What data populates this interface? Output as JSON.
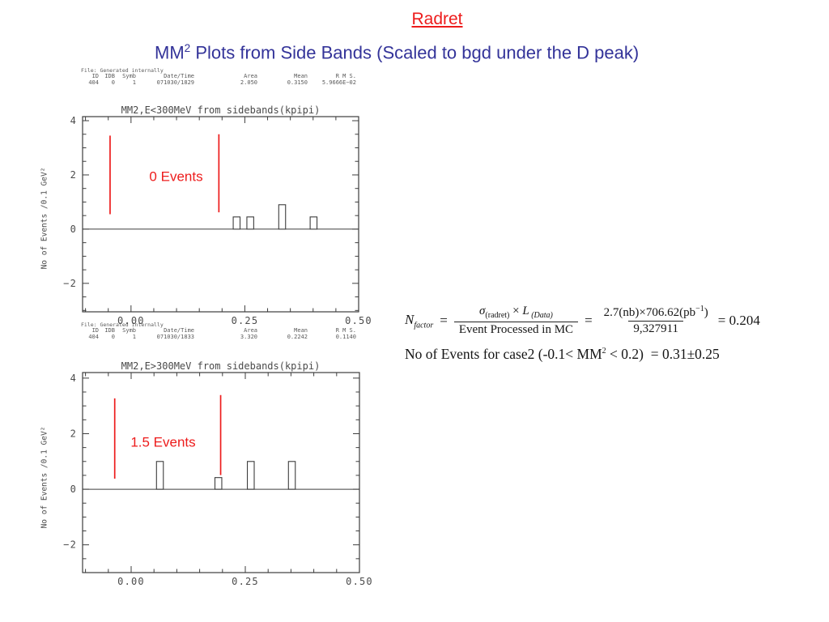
{
  "slide": {
    "title": "Radret",
    "subtitle": {
      "prefix": "MM",
      "sup": "2",
      "rest": " Plots from Side Bands (Scaled to bgd under the D peak)"
    }
  },
  "colors": {
    "accent_red": "#ed1c1c",
    "subtitle_blue": "#333399",
    "plot_line": "#3d3d3d",
    "tick_text": "#4a4a4a"
  },
  "chart_data": [
    {
      "type": "bar",
      "title": "MM2,E<300MeV from sidebands(kpipi)",
      "ylabel": "No of Events /0.1 GeV²",
      "xlabel": "",
      "xlim": [
        -0.1064,
        0.5
      ],
      "ylim": [
        -3.05,
        4.15
      ],
      "grid": false,
      "xticks": [
        {
          "v": 0,
          "label": "0.00"
        },
        {
          "v": 0.25,
          "label": "0.25"
        },
        {
          "v": 0.5,
          "label": "0.50"
        }
      ],
      "yticks": [
        {
          "v": -2,
          "label": "−2"
        },
        {
          "v": 0,
          "label": "0"
        },
        {
          "v": 2,
          "label": "2"
        },
        {
          "v": 4,
          "label": "4"
        }
      ],
      "x_minor_step": 0.05,
      "y_minor_step": 0.5,
      "bin_width": 0.015,
      "bars": [
        {
          "x": 0.232,
          "h": 0.45
        },
        {
          "x": 0.262,
          "h": 0.45
        },
        {
          "x": 0.332,
          "h": 0.9
        },
        {
          "x": 0.401,
          "h": 0.45
        }
      ],
      "cut_lines": [
        {
          "x": -0.046,
          "y0": 0.55,
          "y1": 3.45
        },
        {
          "x": 0.193,
          "y0": 0.62,
          "y1": 3.5
        }
      ],
      "annotation": {
        "text": "0 Events",
        "x": 0.099,
        "y": 1.95
      },
      "stats": {
        "file_line": "File: Generated internally",
        "headers": [
          "ID",
          "IDB",
          "Symb",
          "Date/Time",
          "Area",
          "Mean",
          "R M S."
        ],
        "values": [
          "404",
          "0",
          "1",
          "071030/1829",
          "2.050",
          "0.3150",
          "5.9666E−02"
        ]
      }
    },
    {
      "type": "bar",
      "title": "MM2,E>300MeV from sidebands(kpipi)",
      "ylabel": "No of Events /0.1 GeV²",
      "xlabel": "",
      "xlim": [
        -0.1064,
        0.5
      ],
      "ylim": [
        -3.0,
        4.2
      ],
      "grid": false,
      "xticks": [
        {
          "v": 0,
          "label": "0.00"
        },
        {
          "v": 0.25,
          "label": "0.25"
        },
        {
          "v": 0.5,
          "label": "0.50"
        }
      ],
      "yticks": [
        {
          "v": -2,
          "label": "−2"
        },
        {
          "v": 0,
          "label": "0"
        },
        {
          "v": 2,
          "label": "2"
        },
        {
          "v": 4,
          "label": "4"
        }
      ],
      "x_minor_step": 0.05,
      "y_minor_step": 0.5,
      "bin_width": 0.015,
      "bars": [
        {
          "x": 0.063,
          "h": 1.0
        },
        {
          "x": 0.191,
          "h": 0.42
        },
        {
          "x": 0.262,
          "h": 1.0
        },
        {
          "x": 0.352,
          "h": 1.0
        }
      ],
      "cut_lines": [
        {
          "x": -0.036,
          "y0": 0.38,
          "y1": 3.27
        },
        {
          "x": 0.196,
          "y0": 0.51,
          "y1": 3.39
        }
      ],
      "annotation": {
        "text": "1.5 Events",
        "x": 0.07,
        "y": 1.71
      },
      "stats": {
        "file_line": "File: Generated internally",
        "headers": [
          "ID",
          "IDB",
          "Symb",
          "Date/Time",
          "Area",
          "Mean",
          "R M S."
        ],
        "values": [
          "404",
          "0",
          "1",
          "071030/1833",
          "3.320",
          "0.2242",
          "0.1140"
        ]
      }
    }
  ],
  "formulas": {
    "nfactor": {
      "lhs": "N",
      "lhs_sub": "factor",
      "eq1": "=",
      "num1_sigma": "σ",
      "num1_sigma_sub": "(radret)",
      "num1_times": " × ",
      "num1_L": "L",
      "num1_L_sub": " (Data)",
      "den1": "Event Processed in MC",
      "eq2": "=",
      "num2": "2.7(nb)×706.62(pb",
      "num2_sup": "−1",
      "num2_close": ")",
      "den2": "9,327911",
      "result": "= 0.204"
    },
    "events_line": {
      "a": "No of Events for case2 (-0.1< MM",
      "sup": "2",
      "b": " < 0.2)  = 0.31±0.25"
    }
  }
}
